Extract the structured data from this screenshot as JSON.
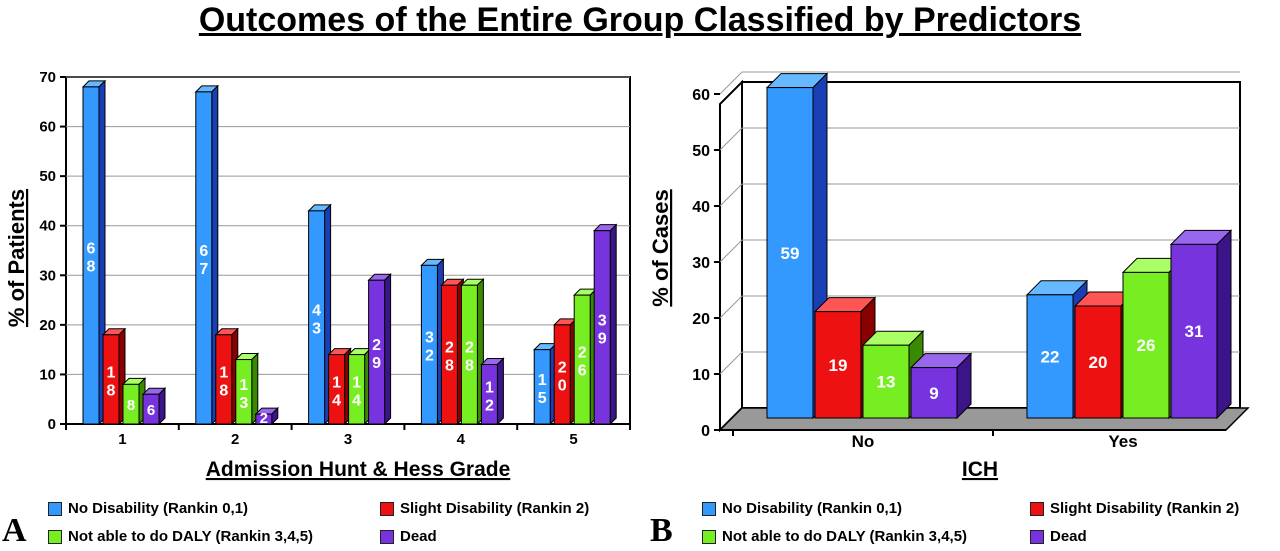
{
  "title": "Outcomes of the Entire Group Classified by Predictors",
  "legend": [
    {
      "label": "No Disability (Rankin 0,1)",
      "color": "#3399ff"
    },
    {
      "label": "Slight Disability (Rankin 2)",
      "color": "#ee1111"
    },
    {
      "label": "Not able to do DALY (Rankin 3,4,5)",
      "color": "#77ee22"
    },
    {
      "label": "Dead",
      "color": "#7733dd"
    }
  ],
  "chart_data": [
    {
      "panel": "A",
      "type": "bar",
      "xlabel": "Admission Hunt & Hess Grade",
      "ylabel": "% of Patients",
      "ylim": [
        0,
        70
      ],
      "yticks": [
        0,
        10,
        20,
        30,
        40,
        50,
        60,
        70
      ],
      "categories": [
        "1",
        "2",
        "3",
        "4",
        "5"
      ],
      "series": [
        {
          "name": "No Disability (Rankin 0,1)",
          "values": [
            68,
            67,
            43,
            32,
            15
          ]
        },
        {
          "name": "Slight Disability (Rankin 2)",
          "values": [
            18,
            18,
            14,
            28,
            20
          ]
        },
        {
          "name": "Not able to do DALY (Rankin 3,4,5)",
          "values": [
            8,
            13,
            14,
            28,
            26
          ]
        },
        {
          "name": "Dead",
          "values": [
            6,
            2,
            29,
            12,
            39
          ]
        }
      ],
      "grid": true,
      "legend_position": "bottom"
    },
    {
      "panel": "B",
      "type": "bar",
      "xlabel": "ICH",
      "ylabel": "% of Cases",
      "ylim": [
        0,
        60
      ],
      "yticks": [
        0,
        10,
        20,
        30,
        40,
        50,
        60
      ],
      "categories": [
        "No",
        "Yes"
      ],
      "series": [
        {
          "name": "No Disability (Rankin 0,1)",
          "values": [
            59,
            22
          ]
        },
        {
          "name": "Slight Disability (Rankin 2)",
          "values": [
            19,
            20
          ]
        },
        {
          "name": "Not able to do DALY (Rankin 3,4,5)",
          "values": [
            13,
            26
          ]
        },
        {
          "name": "Dead",
          "values": [
            9,
            31
          ]
        }
      ],
      "grid": true,
      "legend_position": "bottom"
    }
  ]
}
